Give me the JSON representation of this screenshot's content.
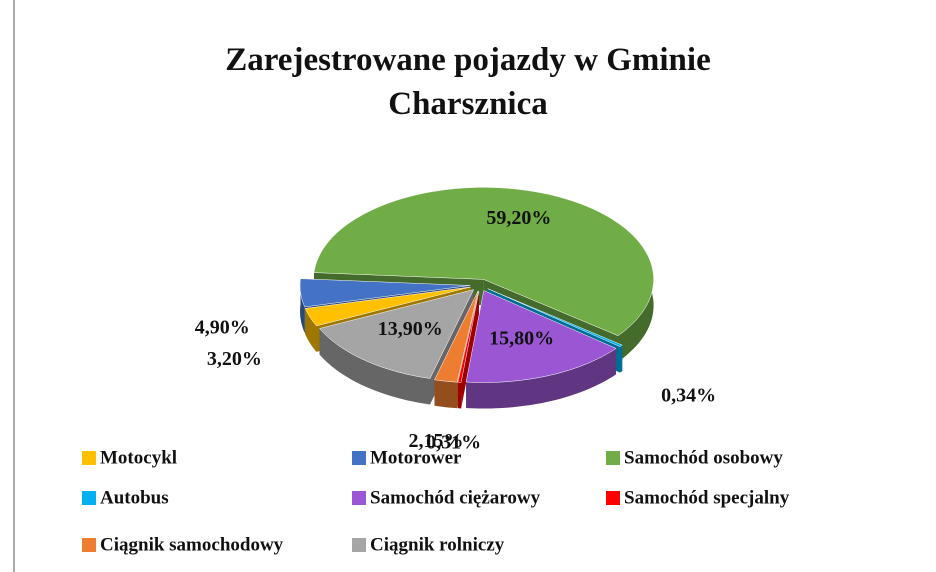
{
  "chart_data": {
    "type": "pie",
    "title": "Zarejestrowane pojazdy w Gminie Charsznica",
    "categories": [
      "Motocykl",
      "Motorower",
      "Samochód osobowy",
      "Autobus",
      "Samochód ciężarowy",
      "Samochód specjalny",
      "Ciągnik samochodowy",
      "Ciągnik rolniczy"
    ],
    "values": [
      3.2,
      4.9,
      59.2,
      0.34,
      15.8,
      0.31,
      2.15,
      13.9
    ],
    "value_labels": [
      "3,20%",
      "4,90%",
      "59,20%",
      "0,34%",
      "15,80%",
      "0,31%",
      "2,15%",
      "13,90%"
    ],
    "colors": [
      "#ffc000",
      "#4472c4",
      "#70ad47",
      "#00b0f0",
      "#9b57d3",
      "#ff0000",
      "#ed7d31",
      "#a5a5a5"
    ],
    "legend": "bottom"
  }
}
